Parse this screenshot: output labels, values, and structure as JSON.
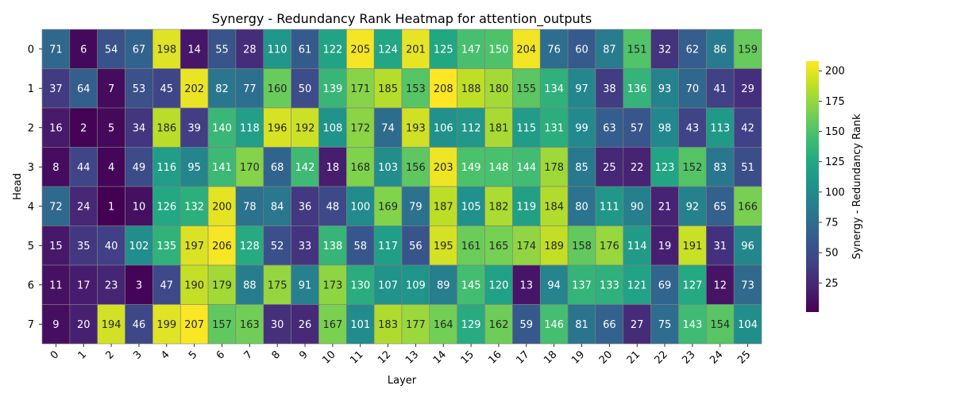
{
  "chart_data": {
    "type": "heatmap",
    "title": "Synergy - Redundancy Rank Heatmap for attention_outputs",
    "xlabel": "Layer",
    "ylabel": "Head",
    "colorbar_label": "Synergy - Redundancy Rank",
    "colormap": "viridis",
    "value_range": [
      1,
      208
    ],
    "colorbar_ticks": [
      25,
      50,
      75,
      100,
      125,
      150,
      175,
      200
    ],
    "x_categories": [
      "0",
      "1",
      "2",
      "3",
      "4",
      "5",
      "6",
      "7",
      "8",
      "9",
      "10",
      "11",
      "12",
      "13",
      "14",
      "15",
      "16",
      "17",
      "18",
      "19",
      "20",
      "21",
      "22",
      "23",
      "24",
      "25"
    ],
    "y_categories": [
      "0",
      "1",
      "2",
      "3",
      "4",
      "5",
      "6",
      "7"
    ],
    "values": [
      [
        71,
        6,
        54,
        67,
        198,
        14,
        55,
        28,
        110,
        61,
        122,
        205,
        124,
        201,
        125,
        147,
        150,
        204,
        76,
        60,
        87,
        151,
        32,
        62,
        86,
        159
      ],
      [
        37,
        64,
        7,
        53,
        45,
        202,
        82,
        77,
        160,
        50,
        139,
        171,
        185,
        153,
        208,
        188,
        180,
        155,
        134,
        97,
        38,
        136,
        93,
        70,
        41,
        29
      ],
      [
        16,
        2,
        5,
        34,
        186,
        39,
        140,
        118,
        196,
        192,
        108,
        172,
        74,
        193,
        106,
        112,
        181,
        115,
        131,
        99,
        63,
        57,
        98,
        43,
        113,
        42
      ],
      [
        8,
        44,
        4,
        49,
        116,
        95,
        141,
        170,
        68,
        142,
        18,
        168,
        103,
        156,
        203,
        149,
        148,
        144,
        178,
        85,
        25,
        22,
        123,
        152,
        83,
        51
      ],
      [
        72,
        24,
        1,
        10,
        126,
        132,
        200,
        78,
        84,
        36,
        48,
        100,
        169,
        79,
        187,
        105,
        182,
        119,
        184,
        80,
        111,
        90,
        21,
        92,
        65,
        166
      ],
      [
        15,
        35,
        40,
        102,
        135,
        197,
        206,
        128,
        52,
        33,
        138,
        58,
        117,
        56,
        195,
        161,
        165,
        174,
        189,
        158,
        176,
        114,
        19,
        191,
        31,
        96
      ],
      [
        11,
        17,
        23,
        3,
        47,
        190,
        179,
        88,
        175,
        91,
        173,
        130,
        107,
        109,
        89,
        145,
        120,
        13,
        94,
        137,
        133,
        121,
        69,
        127,
        12,
        73
      ],
      [
        9,
        20,
        194,
        46,
        199,
        207,
        157,
        163,
        30,
        26,
        167,
        101,
        183,
        177,
        164,
        129,
        162,
        59,
        146,
        81,
        66,
        27,
        75,
        143,
        154,
        104
      ]
    ]
  }
}
